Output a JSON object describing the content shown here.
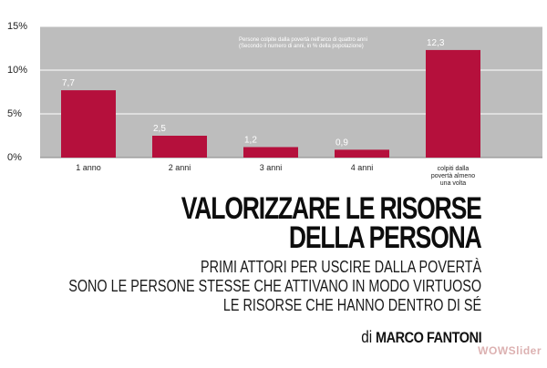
{
  "chart_data": {
    "type": "bar",
    "annotation": [
      "Persone colpite dalla povertà nell'arco di quattro anni",
      "(Secondo il numero di anni, in % della popolazione)"
    ],
    "categories": [
      [
        "1 anno"
      ],
      [
        "2 anni"
      ],
      [
        "3 anni"
      ],
      [
        "4 anni"
      ],
      [
        "colpiti dalla",
        "povertà almeno",
        "una volta"
      ]
    ],
    "values": [
      7.7,
      2.5,
      1.2,
      0.9,
      12.3
    ],
    "data_labels": [
      "7,7",
      "2,5",
      "1,2",
      "0,9",
      "12,3"
    ],
    "y_ticks": [
      0,
      5,
      10,
      15
    ],
    "y_tick_labels": [
      "0%",
      "5%",
      "10%",
      "15%"
    ],
    "ylim": [
      0,
      15
    ],
    "grid": true,
    "bar_color": "#b5103c",
    "plot_background": "#bdbdbd",
    "grid_color": "#ffffff",
    "xlabel": "",
    "ylabel": ""
  },
  "headline": [
    "Valorizzare le risorse",
    "della persona"
  ],
  "subtitle": [
    "Primi attori per uscire dalla povertà",
    "sono le persone stesse che attivano in modo virtuoso",
    "le risorse che hanno dentro di sé"
  ],
  "author": {
    "prefix": "di",
    "name": "Marco Fantoni"
  },
  "watermark": "WOWSlider"
}
